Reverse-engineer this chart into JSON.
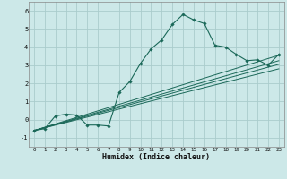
{
  "xlabel": "Humidex (Indice chaleur)",
  "background_color": "#cce8e8",
  "grid_color": "#aacccc",
  "line_color": "#1a6858",
  "xlim": [
    -0.5,
    23.5
  ],
  "ylim": [
    -1.5,
    6.5
  ],
  "main_curve": {
    "x": [
      0,
      1,
      2,
      3,
      4,
      5,
      6,
      7,
      8,
      9,
      10,
      11,
      12,
      13,
      14,
      15,
      16,
      17,
      18,
      19,
      20,
      21,
      22,
      23
    ],
    "y": [
      -0.6,
      -0.5,
      0.2,
      0.3,
      0.25,
      -0.3,
      -0.3,
      -0.35,
      1.5,
      2.1,
      3.1,
      3.9,
      4.4,
      5.25,
      5.8,
      5.5,
      5.3,
      4.1,
      4.0,
      3.6,
      3.25,
      3.3,
      3.0,
      3.6
    ]
  },
  "linear_lines": [
    {
      "x": [
        0,
        23
      ],
      "y": [
        -0.6,
        3.55
      ]
    },
    {
      "x": [
        0,
        23
      ],
      "y": [
        -0.6,
        3.25
      ]
    },
    {
      "x": [
        0,
        23
      ],
      "y": [
        -0.6,
        3.05
      ]
    },
    {
      "x": [
        0,
        23
      ],
      "y": [
        -0.6,
        2.8
      ]
    }
  ],
  "yticks": [
    -1,
    0,
    1,
    2,
    3,
    4,
    5,
    6
  ],
  "xticks": [
    0,
    1,
    2,
    3,
    4,
    5,
    6,
    7,
    8,
    9,
    10,
    11,
    12,
    13,
    14,
    15,
    16,
    17,
    18,
    19,
    20,
    21,
    22,
    23
  ]
}
